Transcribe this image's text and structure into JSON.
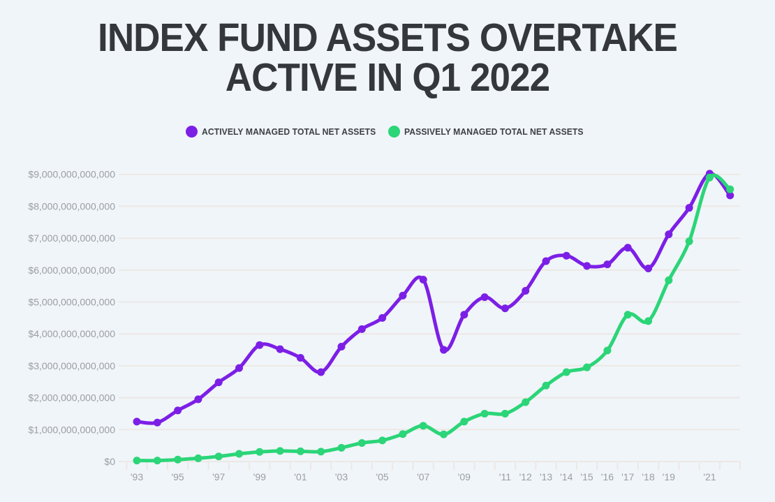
{
  "title": {
    "line1": "INDEX FUND ASSETS OVERTAKE",
    "line2": "ACTIVE IN Q1 2022"
  },
  "legend": [
    {
      "label": "ACTIVELY MANAGED TOTAL NET ASSETS",
      "color": "#7c1fe6"
    },
    {
      "label": "PASSIVELY MANAGED TOTAL NET ASSETS",
      "color": "#2bd578"
    }
  ],
  "colors": {
    "background": "#f0f5f9",
    "grid": "#ece8e5",
    "axis_text": "#9b9ea2",
    "title_text": "#34383d",
    "active_series": "#7c1fe6",
    "passive_series": "#2bd578"
  },
  "chart_data": {
    "type": "line",
    "title": "Index fund assets overtake active in Q1 2022",
    "x": [
      1993,
      1994,
      1995,
      1996,
      1997,
      1998,
      1999,
      2000,
      2001,
      2002,
      2003,
      2004,
      2005,
      2006,
      2007,
      2008,
      2009,
      2010,
      2011,
      2012,
      2013,
      2014,
      2015,
      2016,
      2017,
      2018,
      2019,
      2020,
      2021,
      2022
    ],
    "series": [
      {
        "name": "Actively managed total net assets",
        "color": "#7c1fe6",
        "values": [
          1250000000000,
          1220000000000,
          1600000000000,
          1950000000000,
          2480000000000,
          2930000000000,
          3650000000000,
          3520000000000,
          3250000000000,
          2800000000000,
          3600000000000,
          4150000000000,
          4500000000000,
          5200000000000,
          5700000000000,
          3500000000000,
          4600000000000,
          5150000000000,
          4800000000000,
          5350000000000,
          6280000000000,
          6450000000000,
          6130000000000,
          6180000000000,
          6700000000000,
          6050000000000,
          7120000000000,
          7950000000000,
          9020000000000,
          8340000000000
        ]
      },
      {
        "name": "Passively managed total net assets",
        "color": "#2bd578",
        "values": [
          30000000000,
          30000000000,
          60000000000,
          100000000000,
          160000000000,
          240000000000,
          300000000000,
          330000000000,
          320000000000,
          310000000000,
          430000000000,
          580000000000,
          660000000000,
          860000000000,
          1120000000000,
          850000000000,
          1250000000000,
          1500000000000,
          1500000000000,
          1860000000000,
          2380000000000,
          2800000000000,
          2950000000000,
          3480000000000,
          4600000000000,
          4400000000000,
          5680000000000,
          6900000000000,
          8900000000000,
          8530000000000
        ]
      }
    ],
    "xlabel": "",
    "ylabel": "",
    "ylim": [
      0,
      9000000000000
    ],
    "ytick_step": 1000000000000,
    "ytick_prefix": "$",
    "grid": "horizontal",
    "legend_position": "top",
    "x_tick_labels": [
      {
        "year": 1993,
        "label": "'93"
      },
      {
        "year": 1995,
        "label": "'95"
      },
      {
        "year": 1997,
        "label": "'97"
      },
      {
        "year": 1999,
        "label": "'99"
      },
      {
        "year": 2001,
        "label": "'01"
      },
      {
        "year": 2003,
        "label": "'03"
      },
      {
        "year": 2005,
        "label": "'05"
      },
      {
        "year": 2007,
        "label": "'07"
      },
      {
        "year": 2009,
        "label": "'09"
      },
      {
        "year": 2011,
        "label": "'11"
      },
      {
        "year": 2012,
        "label": "'12"
      },
      {
        "year": 2013,
        "label": "'13"
      },
      {
        "year": 2014,
        "label": "'14"
      },
      {
        "year": 2015,
        "label": "'15"
      },
      {
        "year": 2016,
        "label": "'16"
      },
      {
        "year": 2017,
        "label": "'17"
      },
      {
        "year": 2018,
        "label": "'18"
      },
      {
        "year": 2019,
        "label": "'19"
      },
      {
        "year": 2021,
        "label": "'21"
      }
    ]
  }
}
